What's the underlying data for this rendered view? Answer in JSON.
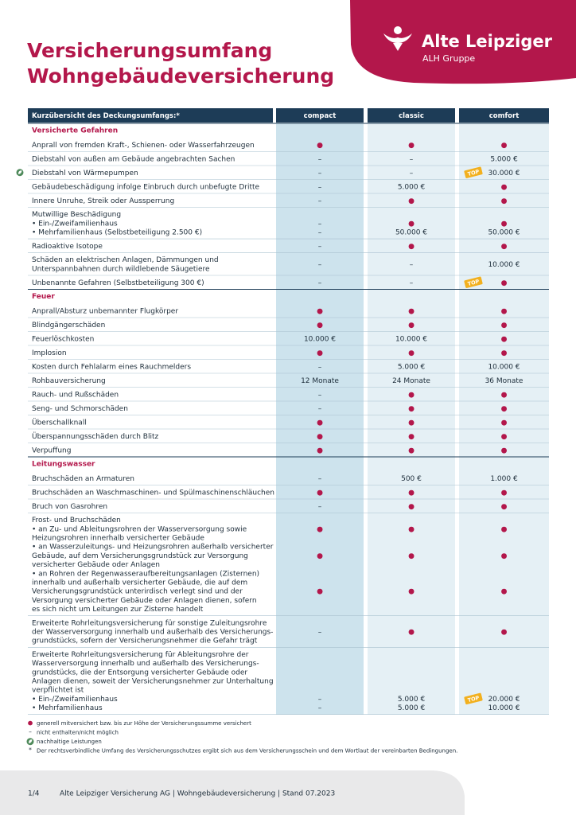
{
  "header": {
    "title_lines": [
      "Versicherungsumfang",
      "Wohngebäudeversicherung"
    ],
    "brand": "Alte Leipziger",
    "group": "ALH Gruppe"
  },
  "table": {
    "columns": [
      "Kurzübersicht des Deckungsumfangs:*",
      "compact",
      "classic",
      "comfort"
    ],
    "sections": [
      {
        "title": "Versicherte Gefahren",
        "rows": [
          {
            "label": [
              "Anprall von fremden Kraft-, Schienen- oder Wasserfahrzeugen"
            ],
            "cells": [
              "●",
              "●",
              "●"
            ]
          },
          {
            "label": [
              "Diebstahl von außen am Gebäude angebrachten Sachen"
            ],
            "cells": [
              "–",
              "–",
              "5.000 €"
            ]
          },
          {
            "label": [
              "Diebstahl von Wärmepumpen"
            ],
            "cells": [
              "–",
              "–",
              "30.000 €"
            ],
            "badge": "TOP",
            "eco": true
          },
          {
            "label": [
              "Gebäudebeschädigung infolge Einbruch durch unbefugte Dritte"
            ],
            "cells": [
              "–",
              "5.000 €",
              "●"
            ]
          },
          {
            "label": [
              "Innere Unruhe, Streik oder Aussperrung"
            ],
            "cells": [
              "–",
              "●",
              "●"
            ]
          },
          {
            "label": [
              "Mutwillige Beschädigung",
              "• Ein-/Zweifamilienhaus",
              "• Mehrfamilienhaus (Selbstbeteiligung 2.500 €)"
            ],
            "cells": [
              [
                null,
                "–",
                "–"
              ],
              [
                null,
                "●",
                "50.000 €"
              ],
              [
                null,
                "●",
                "50.000 €"
              ]
            ]
          },
          {
            "label": [
              "Radioaktive Isotope"
            ],
            "cells": [
              "–",
              "●",
              "●"
            ]
          },
          {
            "label": [
              "Schäden an elektrischen Anlagen, Dämmungen und",
              "Unterspannbahnen durch wildlebende Säugetiere"
            ],
            "cells": [
              "–",
              "–",
              "10.000 €"
            ]
          },
          {
            "label": [
              "Unbenannte Gefahren (Selbstbeteiligung 300 €)"
            ],
            "cells": [
              "–",
              "–",
              "●"
            ],
            "badge": "TOP"
          }
        ]
      },
      {
        "title": "Feuer",
        "rows": [
          {
            "label": [
              "Anprall/Absturz unbemannter Flugkörper"
            ],
            "cells": [
              "●",
              "●",
              "●"
            ]
          },
          {
            "label": [
              "Blindgängerschäden"
            ],
            "cells": [
              "●",
              "●",
              "●"
            ]
          },
          {
            "label": [
              "Feuerlöschkosten"
            ],
            "cells": [
              "10.000 €",
              "10.000 €",
              "●"
            ]
          },
          {
            "label": [
              "Implosion"
            ],
            "cells": [
              "●",
              "●",
              "●"
            ]
          },
          {
            "label": [
              "Kosten durch Fehlalarm eines Rauchmelders"
            ],
            "cells": [
              "–",
              "5.000 €",
              "10.000 €"
            ]
          },
          {
            "label": [
              "Rohbauversicherung"
            ],
            "cells": [
              "12 Monate",
              "24 Monate",
              "36 Monate"
            ]
          },
          {
            "label": [
              "Rauch- und Rußschäden"
            ],
            "cells": [
              "–",
              "●",
              "●"
            ]
          },
          {
            "label": [
              "Seng- und Schmorschäden"
            ],
            "cells": [
              "–",
              "●",
              "●"
            ]
          },
          {
            "label": [
              "Überschallknall"
            ],
            "cells": [
              "●",
              "●",
              "●"
            ]
          },
          {
            "label": [
              "Überspannungsschäden durch Blitz"
            ],
            "cells": [
              "●",
              "●",
              "●"
            ]
          },
          {
            "label": [
              "Verpuffung"
            ],
            "cells": [
              "●",
              "●",
              "●"
            ]
          }
        ]
      },
      {
        "title": "Leitungswasser",
        "rows": [
          {
            "label": [
              "Bruchschäden an Armaturen"
            ],
            "cells": [
              "–",
              "500 €",
              "1.000 €"
            ]
          },
          {
            "label": [
              "Bruchschäden an Waschmaschinen- und Spülmaschinenschläuchen"
            ],
            "cells": [
              "●",
              "●",
              "●"
            ]
          },
          {
            "label": [
              "Bruch von Gasrohren"
            ],
            "cells": [
              "–",
              "●",
              "●"
            ]
          },
          {
            "label": [
              "Frost- und Bruchschäden",
              "• an Zu- und Ableitungsrohren der Wasserversorgung sowie",
              "Heizungsrohren innerhalb versicherter Gebäude",
              "• an Wasserzuleitungs- und Heizungsrohren außerhalb versicherter",
              "Gebäude, auf dem Versicherungsgrundstück zur Versorgung",
              "versicherter Gebäude oder Anlagen",
              "• an Rohren der Regenwasseraufbereitungsanlagen (Zisternen)",
              "innerhalb und außerhalb versicherter Gebäude, die auf dem",
              "Versicherungsgrundstück unterirdisch verlegt sind und der",
              "Versorgung versicherter Gebäude oder Anlagen dienen, sofern",
              "es sich nicht um Leitungen zur Zisterne handelt"
            ],
            "cells": [
              [
                null,
                "●",
                null,
                null,
                "●",
                null,
                null,
                null,
                "●",
                null,
                null
              ],
              [
                null,
                "●",
                null,
                null,
                "●",
                null,
                null,
                null,
                "●",
                null,
                null
              ],
              [
                null,
                "●",
                null,
                null,
                "●",
                null,
                null,
                null,
                "●",
                null,
                null
              ]
            ]
          },
          {
            "label": [
              "Erweiterte Rohrleitungsversicherung für sonstige Zuleitungsrohre",
              "der Wasserversorgung innerhalb und außerhalb des Versicherungs-",
              "grundstücks, sofern der Versicherungsnehmer die Gefahr trägt"
            ],
            "cells": [
              "–",
              "●",
              "●"
            ]
          },
          {
            "label": [
              "Erweiterte Rohrleitungsversicherung für Ableitungsrohre der",
              "Wasserversorgung innerhalb und außerhalb des Versicherungs-",
              "grundstücks, die der Entsorgung versicherter Gebäude oder",
              "Anlagen dienen, soweit der Versicherungsnehmer zur Unterhaltung",
              "verpflichtet ist",
              "• Ein-/Zweifamilienhaus",
              "• Mehrfamilienhaus"
            ],
            "cells": [
              [
                null,
                null,
                null,
                null,
                null,
                "–",
                "–"
              ],
              [
                null,
                null,
                null,
                null,
                null,
                "5.000 €",
                "5.000 €"
              ],
              [
                null,
                null,
                null,
                null,
                null,
                "20.000 €",
                "10.000 €"
              ]
            ],
            "badge": "TOP"
          }
        ]
      }
    ]
  },
  "legend": [
    {
      "symbol": "●",
      "text": "generell mitversichert bzw. bis zur Höhe der Versicherungssumme versichert"
    },
    {
      "symbol": "–",
      "text": "nicht enthalten/nicht möglich"
    },
    {
      "icon": "eco",
      "text": "nachhaltige Leistungen"
    },
    {
      "symbol": "*",
      "text": "Der rechtsverbindliche Umfang des Versicherungsschutzes ergibt sich aus dem Versicherungsschein und dem Wortlaut der vereinbarten Bedingungen."
    }
  ],
  "footer": {
    "page": "1/4",
    "text": "Alte Leipziger Versicherung AG | Wohngebäudeversicherung | Stand 07.2023"
  }
}
